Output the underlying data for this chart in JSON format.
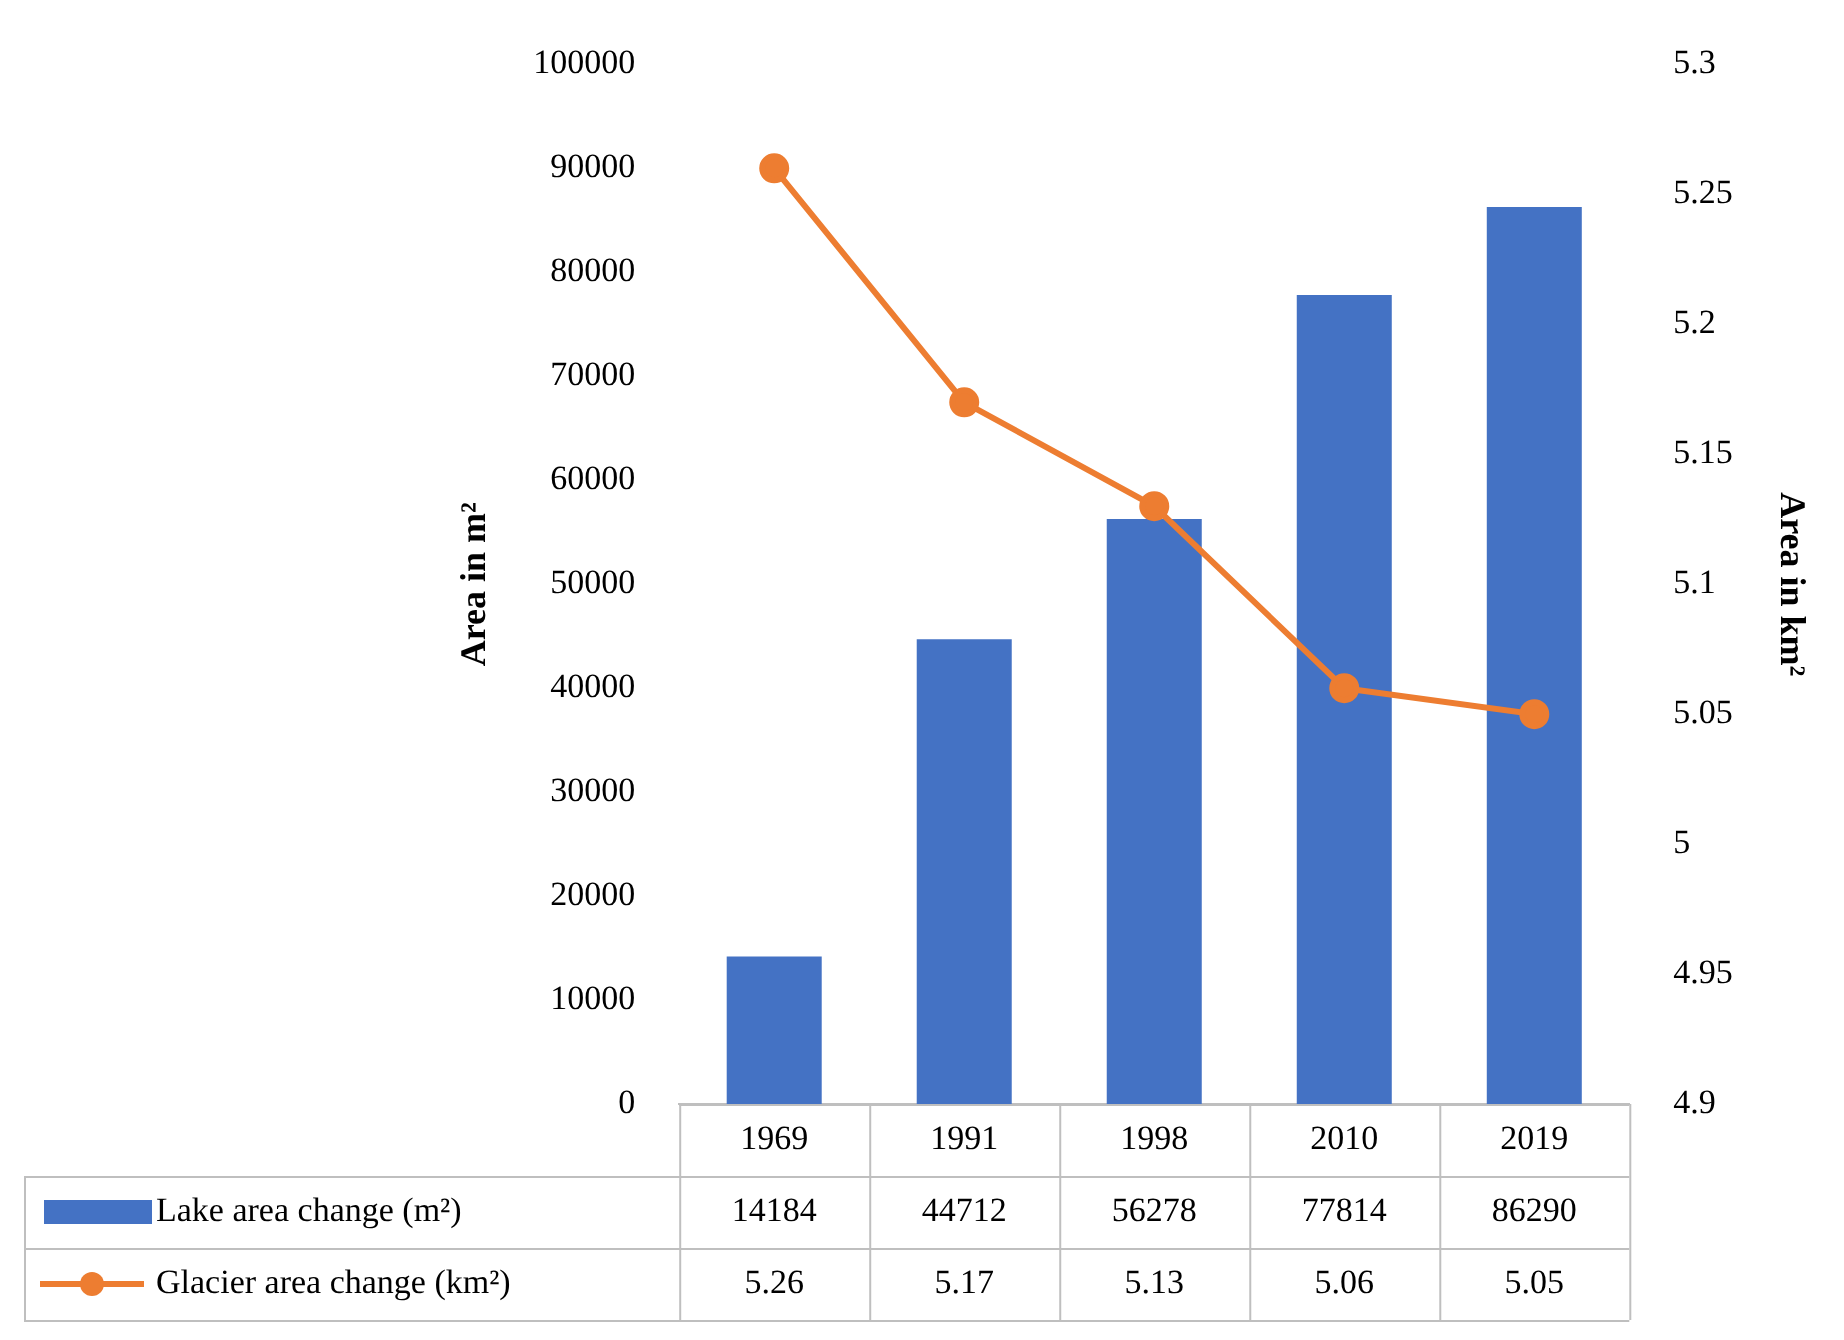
{
  "chart_data": {
    "type": "bar",
    "categories": [
      "1969",
      "1991",
      "1998",
      "2010",
      "2019"
    ],
    "ylabel": "Area in m²",
    "y2label": "Area in km²",
    "ylim": [
      0,
      100000
    ],
    "yticks": [
      0,
      10000,
      20000,
      30000,
      40000,
      50000,
      60000,
      70000,
      80000,
      90000,
      100000
    ],
    "y2lim": [
      4.9,
      5.3
    ],
    "y2ticks": [
      4.9,
      4.95,
      5,
      5.05,
      5.1,
      5.15,
      5.2,
      5.25,
      5.3
    ],
    "series": [
      {
        "name": "Lake area change (m²)",
        "color": "#4472c4",
        "values": [
          14184,
          44712,
          56278,
          77814,
          86290
        ]
      },
      {
        "name": "Glacier area change (km²)",
        "type": "line",
        "axis": "y2",
        "color": "#ed7d31",
        "marker": "circle",
        "values": [
          5.26,
          5.17,
          5.13,
          5.06,
          5.05
        ]
      }
    ],
    "data_labels": true,
    "legend": "bottom",
    "grid": false
  }
}
